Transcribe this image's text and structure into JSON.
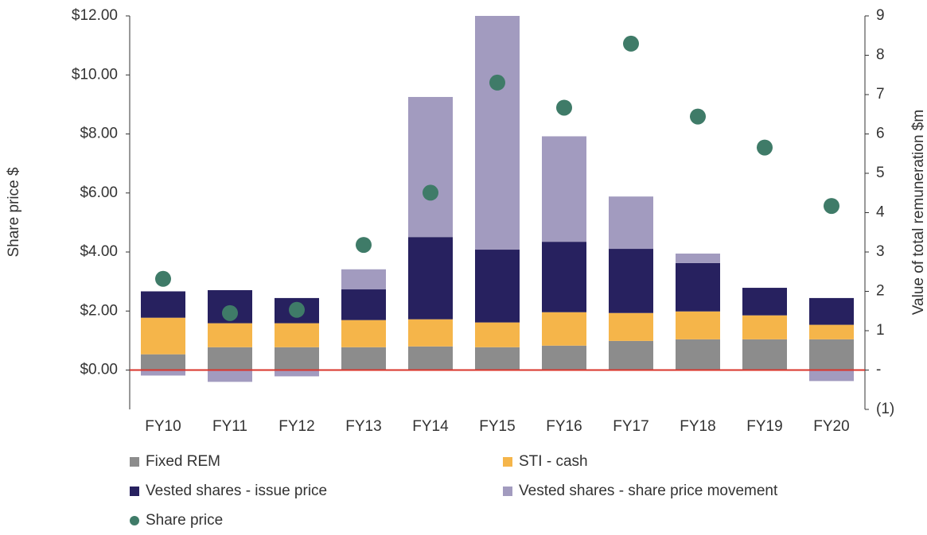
{
  "chart_data": {
    "type": "bar",
    "stacked": true,
    "ylabel": "Share price $",
    "y2label": "Value of total remuneration $m",
    "categories": [
      "FY10",
      "FY11",
      "FY12",
      "FY13",
      "FY14",
      "FY15",
      "FY16",
      "FY17",
      "FY18",
      "FY19",
      "FY20"
    ],
    "ylim": [
      -1.333,
      12
    ],
    "yticks": [
      {
        "value": 0,
        "label": "$0.00"
      },
      {
        "value": 2,
        "label": "$2.00"
      },
      {
        "value": 4,
        "label": "$4.00"
      },
      {
        "value": 6,
        "label": "$6.00"
      },
      {
        "value": 8,
        "label": "$8.00"
      },
      {
        "value": 10,
        "label": "$10.00"
      },
      {
        "value": 12,
        "label": "$12.00"
      }
    ],
    "y2lim": [
      -1,
      9
    ],
    "y2ticks": [
      {
        "value": -1,
        "label": "(1)"
      },
      {
        "value": 0,
        "label": "-"
      },
      1,
      2,
      3,
      4,
      5,
      6,
      7,
      8,
      9
    ],
    "zero_line_color": "#d9342b",
    "series": [
      {
        "name": "Fixed REM",
        "color": "#8c8c8c",
        "axis": "y2",
        "values": [
          0.4,
          0.58,
          0.58,
          0.58,
          0.6,
          0.58,
          0.62,
          0.74,
          0.78,
          0.78,
          0.78
        ]
      },
      {
        "name": "STI - cash",
        "color": "#f5b54a",
        "axis": "y2",
        "values": [
          0.93,
          0.61,
          0.61,
          0.69,
          0.69,
          0.63,
          0.85,
          0.71,
          0.71,
          0.61,
          0.37
        ]
      },
      {
        "name": "Vested shares - issue price",
        "color": "#27215f",
        "axis": "y2",
        "values": [
          0.67,
          0.84,
          0.64,
          0.78,
          2.09,
          1.85,
          1.79,
          1.63,
          1.23,
          0.7,
          0.68
        ]
      },
      {
        "name": "Vested shares - share price movement",
        "color": "#a29bbf",
        "axis": "y2",
        "values": [
          -0.14,
          -0.3,
          -0.16,
          0.51,
          3.56,
          5.94,
          2.68,
          1.33,
          0.24,
          0,
          -0.28
        ]
      },
      {
        "name": "Share price",
        "color": "#3f7b68",
        "axis": "y",
        "type": "scatter",
        "values": [
          3.09,
          1.93,
          2.04,
          4.24,
          6.01,
          9.74,
          8.89,
          11.06,
          8.59,
          7.54,
          5.56
        ]
      }
    ]
  }
}
